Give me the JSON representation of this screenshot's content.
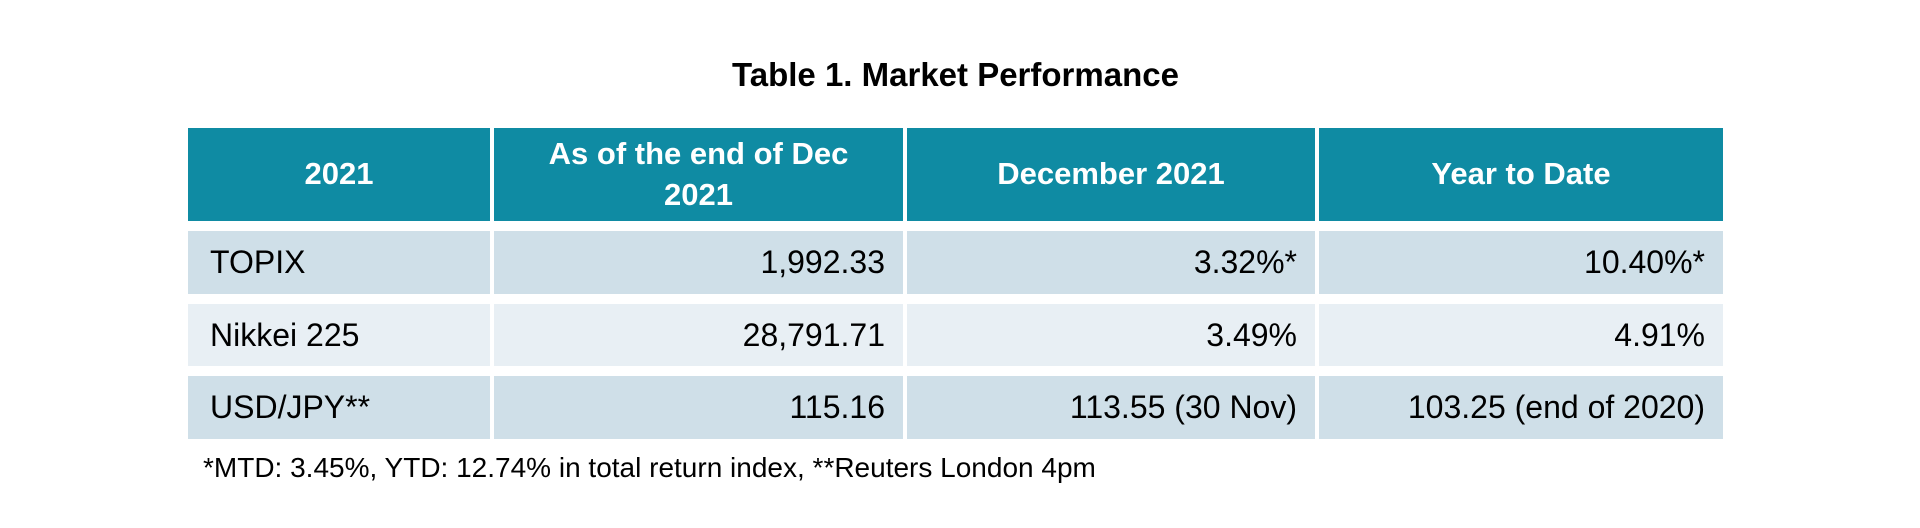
{
  "title": "Table 1. Market Performance",
  "table": {
    "columns": [
      "2021",
      "As of the end of Dec 2021",
      "December 2021",
      "Year to Date"
    ],
    "rows": [
      {
        "label": "TOPIX",
        "values": [
          "1,992.33",
          "3.32%*",
          "10.40%*"
        ]
      },
      {
        "label": "Nikkei 225",
        "values": [
          "28,791.71",
          "3.49%",
          "4.91%"
        ]
      },
      {
        "label": "USD/JPY**",
        "values": [
          "115.16",
          "113.55 (30 Nov)",
          "103.25 (end of 2020)"
        ]
      }
    ]
  },
  "footnote": "*MTD: 3.45%, YTD: 12.74% in total return index, **Reuters London 4pm",
  "colors": {
    "header_bg": "#0f8ba3",
    "header_text": "#ffffff",
    "row_odd_bg": "#cfdfe8",
    "row_even_bg": "#e8eff4",
    "text": "#000000",
    "page_bg": "#ffffff"
  }
}
